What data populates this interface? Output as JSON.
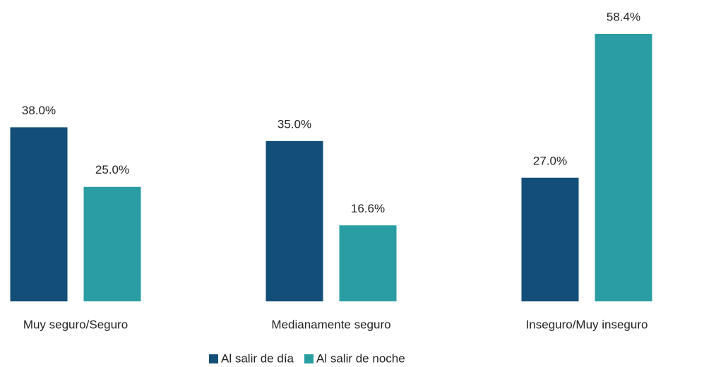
{
  "chart_data": {
    "type": "bar",
    "categories": [
      "Muy seguro/Seguro",
      "Medianamente seguro",
      "Inseguro/Muy inseguro"
    ],
    "series": [
      {
        "name": "Al salir de día",
        "color": "#124e78",
        "values": [
          38,
          35,
          27
        ],
        "value_labels": [
          "38.0%",
          "35.0%",
          "27.0%"
        ]
      },
      {
        "name": "Al salir de noche",
        "color": "#2a9da3",
        "values": [
          25,
          16.6,
          58.4
        ],
        "value_labels": [
          "25.0%",
          "16.6%",
          "58.4%"
        ]
      }
    ],
    "legend": "bottom"
  }
}
